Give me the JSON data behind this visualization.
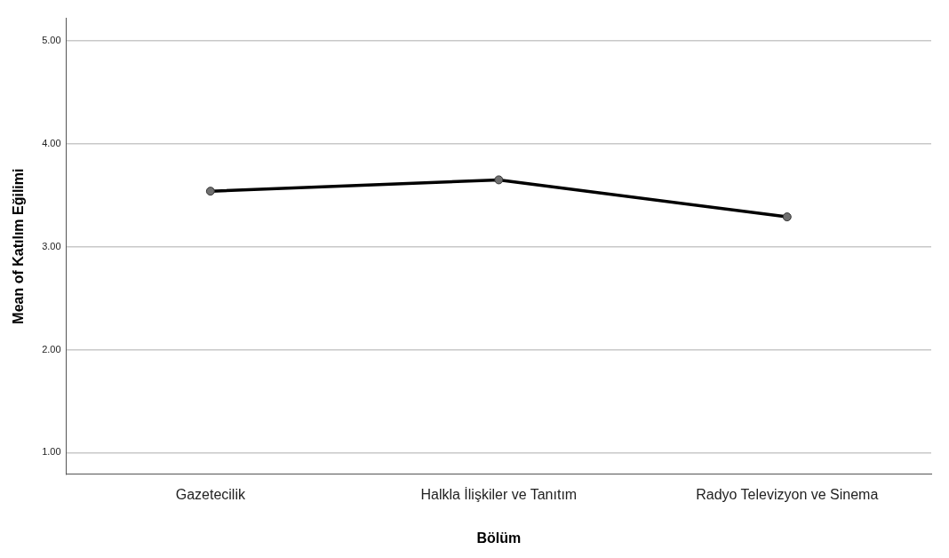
{
  "chart_data": {
    "type": "line",
    "xlabel": "Bölüm",
    "ylabel": "Mean of Katılım Eğilimi",
    "categories": [
      "Gazetecilik",
      "Halkla İlişkiler ve Tanıtım",
      "Radyo Televizyon ve Sinema"
    ],
    "series": [
      {
        "color": "#000000",
        "values": [
          3.54,
          3.65,
          3.29
        ]
      }
    ],
    "ylim": [
      0.79,
      5.22
    ],
    "yticks": [
      {
        "value": 1,
        "label": "1.00"
      },
      {
        "value": 2,
        "label": "2.00"
      },
      {
        "value": 3,
        "label": "3.00"
      },
      {
        "value": 4,
        "label": "4.00"
      },
      {
        "value": 5,
        "label": "5.00"
      }
    ],
    "grid": "y",
    "legend": false,
    "marker": "circle",
    "line_style": "solid"
  }
}
